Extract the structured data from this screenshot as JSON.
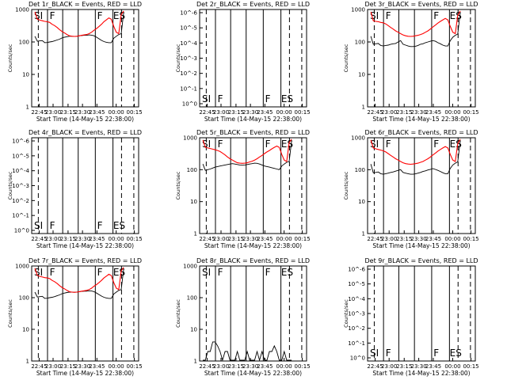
{
  "chart_data": [
    {
      "panel": "det1",
      "type": "line",
      "title": "Det 1r_BLACK = Events, RED = LLD",
      "xlabel": "Start Time (14-May-15 22:38:00)",
      "ylabel": "Counts/sec",
      "yscale": "log",
      "ylim": [
        1,
        1000
      ],
      "yticks": [
        "1",
        "10",
        "100",
        "1000"
      ],
      "xticks": [
        "22:45",
        "23:00",
        "23:15",
        "23:30",
        "23:45",
        "00:00",
        "00:15"
      ],
      "markers": [
        "SI",
        "F",
        "F",
        "ES"
      ],
      "series": [
        {
          "name": "Events",
          "color": "#000000",
          "values": [
            150,
            105,
            108,
            110,
            95,
            96,
            100,
            103,
            108,
            115,
            122,
            133,
            140,
            145,
            150,
            150,
            148,
            150,
            155,
            158,
            160,
            160,
            165,
            162,
            155,
            140,
            125,
            112,
            103,
            98,
            95,
            95,
            130,
            150,
            170,
            180,
            800
          ]
        },
        {
          "name": "LLD",
          "color": "#ff0000",
          "values": [
            850,
            500,
            470,
            450,
            430,
            420,
            400,
            350,
            320,
            280,
            240,
            210,
            190,
            170,
            155,
            150,
            148,
            150,
            155,
            160,
            165,
            170,
            180,
            200,
            230,
            260,
            300,
            350,
            420,
            480,
            550,
            500,
            300,
            200,
            180,
            700,
            900
          ]
        }
      ]
    },
    {
      "panel": "det2",
      "type": "line",
      "title": "Det 2r_BLACK = Events, RED = LLD",
      "xlabel": "Start Time (14-May-15 22:38:00)",
      "ylabel": "Counts/sec",
      "yscale": "log",
      "ylim": [
        0.9,
        1e-06
      ],
      "yticks": [
        "10^0",
        "10^-1",
        "10^-2",
        "10^-3",
        "10^-4",
        "10^-5",
        "10^-6"
      ],
      "xticks": [
        "22:45",
        "23:00",
        "23:15",
        "23:30",
        "23:45",
        "00:00",
        "00:15"
      ],
      "markers": [
        "SI",
        "F",
        "F",
        "ES"
      ],
      "series": []
    },
    {
      "panel": "det3",
      "type": "line",
      "title": "Det 3r_BLACK = Events, RED = LLD",
      "xlabel": "Start Time (14-May-15 22:38:00)",
      "ylabel": "Counts/sec",
      "yscale": "log",
      "ylim": [
        1,
        1000
      ],
      "yticks": [
        "1",
        "10",
        "100",
        "1000"
      ],
      "xticks": [
        "22:45",
        "23:00",
        "23:15",
        "23:30",
        "23:45",
        "00:00",
        "00:15"
      ],
      "markers": [
        "SI",
        "F",
        "F",
        "ES"
      ],
      "series": [
        {
          "name": "Events",
          "color": "#000000",
          "values": [
            150,
            85,
            88,
            90,
            78,
            75,
            78,
            80,
            85,
            88,
            90,
            100,
            110,
            85,
            80,
            75,
            72,
            72,
            74,
            78,
            85,
            88,
            95,
            100,
            105,
            110,
            105,
            95,
            88,
            80,
            75,
            75,
            110,
            140,
            160,
            175,
            800
          ]
        },
        {
          "name": "LLD",
          "color": "#ff0000",
          "values": [
            850,
            450,
            430,
            420,
            400,
            390,
            360,
            320,
            280,
            250,
            220,
            200,
            180,
            165,
            155,
            150,
            148,
            150,
            155,
            160,
            170,
            180,
            200,
            220,
            250,
            290,
            330,
            380,
            430,
            480,
            530,
            480,
            300,
            200,
            180,
            650,
            900
          ]
        }
      ]
    },
    {
      "panel": "det4",
      "type": "line",
      "title": "Det 4r_BLACK = Events, RED = LLD",
      "xlabel": "Start Time (14-May-15 22:38:00)",
      "ylabel": "Counts/sec",
      "yscale": "log",
      "ylim": [
        0.9,
        1e-06
      ],
      "yticks": [
        "10^0",
        "10^-1",
        "10^-2",
        "10^-3",
        "10^-4",
        "10^-5",
        "10^-6"
      ],
      "xticks": [
        "22:45",
        "23:00",
        "23:15",
        "23:30",
        "23:45",
        "00:00",
        "00:15"
      ],
      "markers": [
        "SI",
        "F",
        "F",
        "ES"
      ],
      "series": []
    },
    {
      "panel": "det5",
      "type": "line",
      "title": "Det 5r_BLACK = Events, RED = LLD",
      "xlabel": "Start Time (14-May-15 22:38:00)",
      "ylabel": "Counts/sec",
      "yscale": "log",
      "ylim": [
        1,
        1000
      ],
      "yticks": [
        "1",
        "10",
        "100",
        "1000"
      ],
      "xticks": [
        "22:45",
        "23:00",
        "23:15",
        "23:30",
        "23:45",
        "00:00",
        "00:15"
      ],
      "markers": [
        "SI",
        "F",
        "F",
        "ES"
      ],
      "series": [
        {
          "name": "Events",
          "color": "#000000",
          "values": [
            150,
            95,
            100,
            105,
            112,
            120,
            125,
            130,
            135,
            140,
            145,
            150,
            155,
            150,
            145,
            140,
            138,
            140,
            145,
            150,
            155,
            160,
            158,
            150,
            140,
            130,
            125,
            120,
            115,
            110,
            105,
            100,
            130,
            150,
            170,
            180,
            800
          ]
        },
        {
          "name": "LLD",
          "color": "#ff0000",
          "values": [
            850,
            500,
            480,
            460,
            440,
            420,
            400,
            370,
            330,
            290,
            250,
            220,
            200,
            180,
            165,
            160,
            158,
            160,
            165,
            175,
            185,
            200,
            220,
            250,
            280,
            320,
            360,
            400,
            450,
            500,
            550,
            500,
            300,
            200,
            180,
            700,
            900
          ]
        }
      ]
    },
    {
      "panel": "det6",
      "type": "line",
      "title": "Det 6r_BLACK = Events, RED = LLD",
      "xlabel": "Start Time (14-May-15 22:38:00)",
      "ylabel": "Counts/sec",
      "yscale": "log",
      "ylim": [
        1,
        1000
      ],
      "yticks": [
        "1",
        "10",
        "100",
        "1000"
      ],
      "xticks": [
        "22:45",
        "23:00",
        "23:15",
        "23:30",
        "23:45",
        "00:00",
        "00:15"
      ],
      "markers": [
        "SI",
        "F",
        "F",
        "ES"
      ],
      "series": [
        {
          "name": "Events",
          "color": "#000000",
          "values": [
            150,
            80,
            82,
            85,
            75,
            72,
            75,
            78,
            82,
            85,
            90,
            95,
            100,
            82,
            78,
            75,
            72,
            72,
            74,
            78,
            82,
            88,
            92,
            98,
            102,
            108,
            102,
            95,
            88,
            80,
            75,
            75,
            110,
            140,
            160,
            175,
            800
          ]
        },
        {
          "name": "LLD",
          "color": "#ff0000",
          "values": [
            850,
            480,
            450,
            430,
            410,
            390,
            360,
            320,
            280,
            250,
            220,
            200,
            180,
            165,
            155,
            150,
            148,
            150,
            155,
            160,
            170,
            180,
            200,
            220,
            250,
            290,
            330,
            380,
            430,
            480,
            530,
            480,
            300,
            200,
            180,
            650,
            900
          ]
        }
      ]
    },
    {
      "panel": "det7",
      "type": "line",
      "title": "Det 7r_BLACK = Events, RED = LLD",
      "xlabel": "Start Time (14-May-15 22:38:00)",
      "ylabel": "Counts/sec",
      "yscale": "log",
      "ylim": [
        1,
        1000
      ],
      "yticks": [
        "1",
        "10",
        "100",
        "1000"
      ],
      "xticks": [
        "22:45",
        "23:00",
        "23:15",
        "23:30",
        "23:45",
        "00:00",
        "00:15"
      ],
      "markers": [
        "SI",
        "F",
        "F",
        "ES"
      ],
      "series": [
        {
          "name": "Events",
          "color": "#000000",
          "values": [
            150,
            105,
            108,
            110,
            95,
            96,
            100,
            103,
            108,
            115,
            122,
            133,
            140,
            145,
            150,
            150,
            148,
            150,
            155,
            158,
            160,
            160,
            165,
            162,
            155,
            140,
            125,
            112,
            103,
            98,
            95,
            95,
            130,
            150,
            170,
            180,
            800
          ]
        },
        {
          "name": "LLD",
          "color": "#ff0000",
          "values": [
            850,
            500,
            470,
            450,
            430,
            420,
            400,
            350,
            320,
            280,
            240,
            210,
            190,
            170,
            155,
            150,
            148,
            150,
            155,
            160,
            165,
            170,
            180,
            200,
            230,
            260,
            300,
            350,
            420,
            480,
            550,
            500,
            300,
            200,
            180,
            700,
            900
          ]
        }
      ]
    },
    {
      "panel": "det8",
      "type": "line",
      "title": "Det 8r_BLACK = Events, RED = LLD",
      "xlabel": "Start Time (14-May-15 22:38:00)",
      "ylabel": "Counts/sec",
      "yscale": "log",
      "ylim": [
        1,
        1000
      ],
      "yticks": [
        "1",
        "10",
        "100",
        "1000"
      ],
      "xticks": [
        "22:45",
        "23:00",
        "23:15",
        "23:30",
        "23:45",
        "00:00",
        "00:15"
      ],
      "markers": [
        "SI",
        "F",
        "F",
        "ES"
      ],
      "series": [
        {
          "name": "Events",
          "color": "#000000",
          "values": [
            1,
            1,
            2,
            2,
            4,
            4,
            3,
            2,
            1,
            2,
            2,
            1,
            1,
            1,
            2,
            1,
            1,
            1,
            2,
            1,
            1,
            1,
            2,
            1,
            2,
            1,
            1,
            2,
            2,
            3,
            2,
            1,
            1,
            2,
            1,
            1,
            1
          ]
        }
      ]
    },
    {
      "panel": "det9",
      "type": "line",
      "title": "Det 9r_BLACK = Events, RED = LLD",
      "xlabel": "Start Time (14-May-15 22:38:00)",
      "ylabel": "Counts/sec",
      "yscale": "log",
      "ylim": [
        0.9,
        1e-06
      ],
      "yticks": [
        "10^0",
        "10^-1",
        "10^-2",
        "10^-3",
        "10^-4",
        "10^-5",
        "10^-6"
      ],
      "xticks": [
        "22:45",
        "23:00",
        "23:15",
        "23:30",
        "23:45",
        "00:00",
        "00:15"
      ],
      "markers": [
        "SI",
        "F",
        "F",
        "ES"
      ],
      "series": []
    }
  ]
}
